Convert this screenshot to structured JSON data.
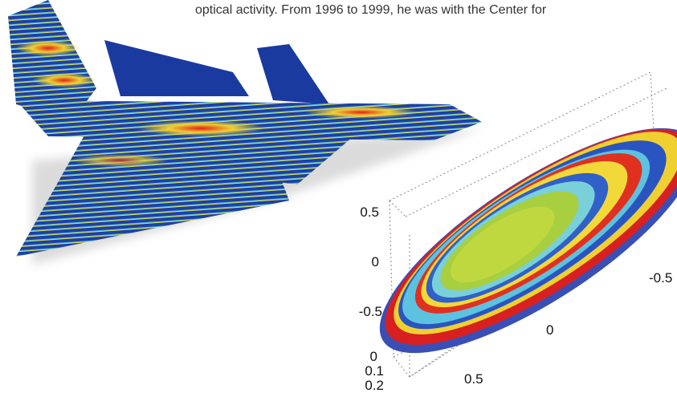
{
  "body_text": "optical activity. From 1996 to 1999, he was with the Center for",
  "figure": {
    "z_axis_labels": [
      "0.5",
      "0",
      "-0.5"
    ],
    "x_axis_labels": [
      "-0.5",
      "0",
      "0.5"
    ],
    "y_axis_labels": [
      "0",
      "0.1",
      "0.2"
    ]
  }
}
